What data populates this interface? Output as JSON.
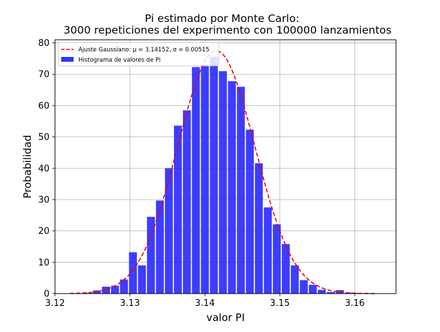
{
  "chart_data": {
    "type": "bar",
    "title_line1": "Pi estimado por Monte Carlo:",
    "title_line2": "3000 repeticiones del experimento con 100000 lanzamientos",
    "xlabel": "valor PI",
    "ylabel": "Probabilidad",
    "xlim": [
      3.12,
      3.1655
    ],
    "ylim": [
      0,
      81
    ],
    "xticks": [
      3.12,
      3.13,
      3.14,
      3.15,
      3.16
    ],
    "xtick_labels": [
      "3.12",
      "3.13",
      "3.14",
      "3.15",
      "3.16"
    ],
    "yticks": [
      0,
      10,
      20,
      30,
      40,
      50,
      60,
      70,
      80
    ],
    "ytick_labels": [
      "0",
      "10",
      "20",
      "30",
      "40",
      "50",
      "60",
      "70",
      "80"
    ],
    "grid": true,
    "legend_position": "top-left",
    "legend": {
      "fit_label": "Ajuste Gaussiano: μ = 3.14152,  σ = 0.00515",
      "hist_label": "Histograma de valores de Pi"
    },
    "fit": {
      "mu": 3.14152,
      "sigma": 0.00515,
      "color": "#e8000b"
    },
    "histogram": {
      "color": "#3333ff",
      "bin_width": 0.0012,
      "bin_centers": [
        3.122,
        3.1232,
        3.1244,
        3.1256,
        3.1268,
        3.128,
        3.1292,
        3.1304,
        3.1316,
        3.1328,
        3.134,
        3.1352,
        3.1364,
        3.1376,
        3.1388,
        3.14,
        3.1412,
        3.1424,
        3.1436,
        3.1448,
        3.146,
        3.1472,
        3.1484,
        3.1496,
        3.1508,
        3.152,
        3.1532,
        3.1544,
        3.1556,
        3.1568,
        3.158,
        3.1592,
        3.1604,
        3.1616,
        3.1628
      ],
      "values": [
        0.1,
        0.1,
        0.2,
        1.0,
        2.2,
        2.5,
        4.5,
        13.2,
        9.0,
        24.5,
        29.7,
        40.0,
        53.6,
        58.5,
        72.3,
        73.0,
        75.6,
        71.0,
        67.8,
        66.0,
        52.3,
        41.6,
        27.5,
        22.1,
        15.8,
        9.0,
        4.3,
        2.8,
        1.2,
        0.5,
        1.1,
        0.3,
        0.2,
        0.1,
        0.1
      ]
    }
  }
}
